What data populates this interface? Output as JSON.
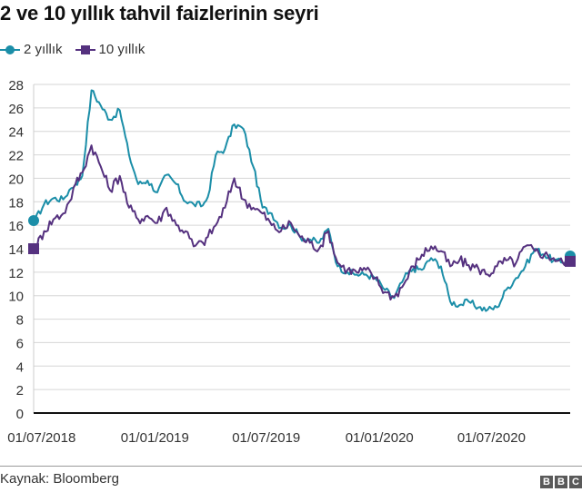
{
  "title": "2 ve 10 yıllık tahvil faizlerinin seyri",
  "legend": [
    {
      "label": "2 yıllık",
      "color": "#1b8ea8",
      "marker": "circle"
    },
    {
      "label": "10 yıllık",
      "color": "#55317f",
      "marker": "square"
    }
  ],
  "footer": {
    "source": "Kaynak: Bloomberg",
    "logo": [
      "B",
      "B",
      "C"
    ]
  },
  "chart_data": {
    "type": "line",
    "title": "2 ve 10 yıllık tahvil faizlerinin seyri",
    "xlabel": "",
    "ylabel": "",
    "ylim": [
      0,
      28
    ],
    "yticks": [
      0,
      2,
      4,
      6,
      8,
      10,
      12,
      14,
      16,
      18,
      20,
      22,
      24,
      26,
      28
    ],
    "xticks": [
      "01/07/2018",
      "01/01/2019",
      "01/07/2019",
      "01/01/2020",
      "01/07/2020"
    ],
    "grid": true,
    "legend_position": "top-left",
    "x": [
      "2018-06-20",
      "2018-07-05",
      "2018-07-20",
      "2018-08-05",
      "2018-08-15",
      "2018-08-25",
      "2018-09-05",
      "2018-09-20",
      "2018-10-05",
      "2018-10-20",
      "2018-11-05",
      "2018-11-20",
      "2018-12-05",
      "2018-12-20",
      "2019-01-05",
      "2019-01-20",
      "2019-02-05",
      "2019-02-20",
      "2019-03-05",
      "2019-03-20",
      "2019-03-28",
      "2019-04-10",
      "2019-04-25",
      "2019-05-10",
      "2019-05-25",
      "2019-06-10",
      "2019-06-25",
      "2019-07-10",
      "2019-07-25",
      "2019-08-10",
      "2019-08-25",
      "2019-09-10",
      "2019-09-25",
      "2019-10-10",
      "2019-10-25",
      "2019-11-10",
      "2019-11-25",
      "2019-12-10",
      "2019-12-25",
      "2020-01-10",
      "2020-01-25",
      "2020-02-10",
      "2020-02-25",
      "2020-03-10",
      "2020-03-25",
      "2020-04-10",
      "2020-04-25",
      "2020-05-10",
      "2020-05-25",
      "2020-06-10",
      "2020-06-25",
      "2020-07-10",
      "2020-07-25",
      "2020-08-10",
      "2020-08-25",
      "2020-09-10",
      "2020-09-25",
      "2020-10-10",
      "2020-10-25",
      "2020-11-05"
    ],
    "series": [
      {
        "name": "2 yıllık",
        "color": "#1b8ea8",
        "values": [
          16.4,
          17.8,
          18.3,
          18.2,
          19.0,
          19.5,
          20.2,
          27.5,
          26.2,
          25.0,
          25.8,
          22.0,
          19.5,
          19.8,
          18.8,
          20.3,
          19.5,
          18.0,
          17.8,
          17.7,
          18.4,
          22.0,
          22.5,
          24.6,
          24.2,
          21.0,
          17.5,
          17.0,
          15.8,
          16.0,
          15.0,
          14.8,
          14.5,
          15.7,
          12.5,
          12.0,
          11.8,
          11.8,
          11.5,
          10.5,
          9.8,
          11.5,
          12.3,
          12.2,
          13.2,
          12.5,
          9.5,
          9.2,
          9.5,
          9.0,
          8.8,
          9.0,
          10.5,
          11.5,
          12.5,
          14.0,
          13.5,
          13.0,
          12.8,
          13.3
        ]
      },
      {
        "name": "10 yıllık",
        "color": "#55317f",
        "values": [
          14.0,
          15.5,
          16.5,
          17.0,
          18.0,
          19.5,
          20.5,
          22.8,
          21.0,
          19.0,
          20.2,
          17.5,
          16.5,
          16.8,
          16.2,
          17.5,
          16.0,
          15.5,
          14.2,
          14.5,
          15.0,
          16.0,
          17.5,
          20.0,
          18.2,
          17.5,
          17.0,
          16.0,
          15.5,
          16.2,
          15.0,
          14.5,
          14.0,
          15.5,
          12.8,
          12.2,
          12.0,
          12.2,
          11.5,
          10.3,
          9.9,
          11.0,
          12.5,
          13.5,
          14.2,
          13.8,
          12.5,
          13.0,
          12.6,
          12.3,
          11.8,
          12.5,
          13.0,
          12.8,
          14.2,
          13.8,
          13.5,
          13.2,
          12.8,
          13.0
        ]
      }
    ]
  }
}
